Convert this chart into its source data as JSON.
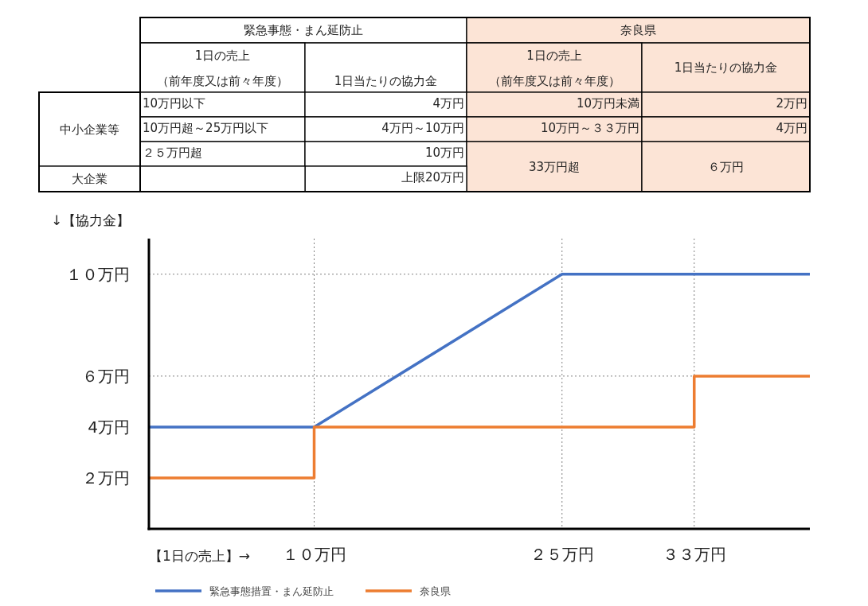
{
  "chart_data": [
    {
      "type": "other",
      "color": "#fce4d6",
      "annotations": [
        "緊急事態・まん延防止",
        "奈良県",
        "1日の売上",
        "（前年度又は前々年度）",
        "1日当たりの協力金",
        "1日の売上",
        "（前年度又は前々年度）",
        "1日当たりの協力金",
        "中小企業等",
        "10万円以下",
        "4万円",
        "10万円未満",
        "2万円",
        "10万円超～25万円以下",
        "4万円～10万円",
        "10万円～３３万円",
        "4万円",
        "２５万円超",
        "10万円",
        "33万円超",
        "６万円",
        "大企業",
        "上限20万円"
      ]
    },
    {
      "type": "line",
      "xlabel": "【1日の売上】→",
      "ylabel": "↓【協力金】",
      "xlim": [
        0,
        40
      ],
      "xticks": [
        {
          "value": 10,
          "label": "１０万円"
        },
        {
          "value": 25,
          "label": "２５万円"
        },
        {
          "value": 33,
          "label": "３３万円"
        }
      ],
      "ylim": [
        0,
        11.4
      ],
      "yticks": [
        {
          "value": 2,
          "label": "２万円"
        },
        {
          "value": 4,
          "label": "4万円"
        },
        {
          "value": 6,
          "label": "６万円"
        },
        {
          "value": 10,
          "label": "１０万円"
        }
      ],
      "ref_lines": [
        {
          "axis": "y",
          "value": 6,
          "color": "#808080",
          "line_style": "dotted"
        },
        {
          "axis": "y",
          "value": 10,
          "color": "#808080",
          "line_style": "dotted"
        },
        {
          "axis": "x",
          "value": 10,
          "color": "#808080",
          "line_style": "dotted"
        },
        {
          "axis": "x",
          "value": 25,
          "color": "#808080",
          "line_style": "dotted"
        },
        {
          "axis": "x",
          "value": 33,
          "color": "#808080",
          "line_style": "dotted"
        }
      ],
      "legend": "bottom",
      "marker": "none",
      "line_style": "solid",
      "series": [
        {
          "name": "緊急事態措置・まん延防止",
          "color": "#4472c4",
          "type": "line",
          "x": [
            0,
            10,
            25,
            40
          ],
          "values": [
            4,
            4,
            10,
            10
          ]
        },
        {
          "name": "奈良県",
          "color": "#ed7d31",
          "type": "step",
          "x": [
            0,
            10,
            33,
            40
          ],
          "values": [
            2,
            4,
            6,
            6
          ]
        }
      ]
    }
  ]
}
